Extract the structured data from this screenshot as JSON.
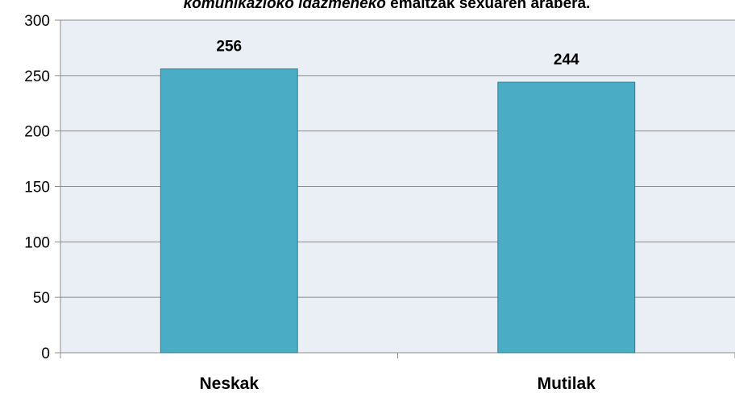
{
  "chart_data": {
    "type": "bar",
    "title": [
      "komunikazioko idazmeneko",
      "emaitzak sexuaren arabera."
    ],
    "categories": [
      "Neskak",
      "Mutilak"
    ],
    "values": [
      256,
      244
    ],
    "color": "#4bacc6",
    "ylim": [
      0,
      300
    ],
    "yticks": [
      0,
      50,
      100,
      150,
      200,
      250,
      300
    ],
    "grid": true
  }
}
